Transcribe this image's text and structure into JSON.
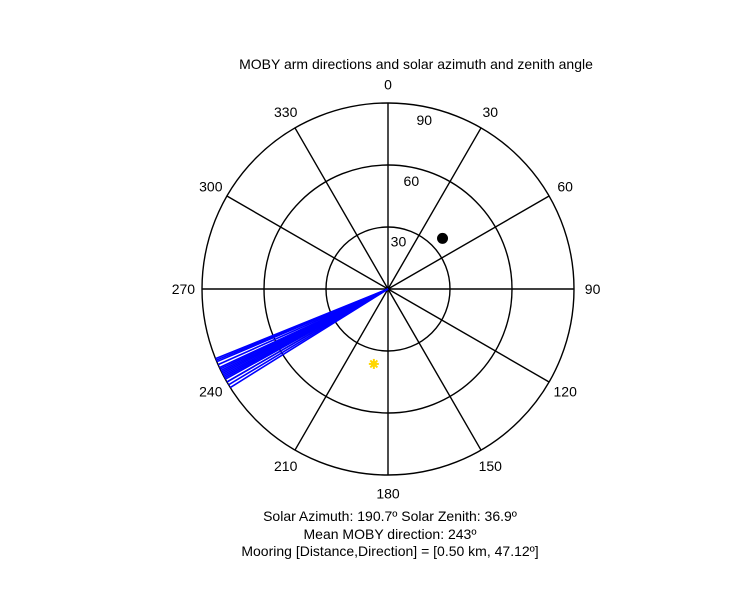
{
  "chart_data": {
    "type": "polar",
    "title": "MOBY arm directions and solar azimuth and zenith angle",
    "angle_ticks": [
      "0",
      "30",
      "60",
      "90",
      "120",
      "150",
      "180",
      "210",
      "240",
      "270",
      "300",
      "330"
    ],
    "radial_ticks": [
      "30",
      "60",
      "90"
    ],
    "rlim": [
      0,
      90
    ],
    "grid": true,
    "arm_directions": {
      "color": "#0000ff",
      "theta_deg": [
        238,
        239,
        240,
        241,
        241.5,
        242,
        242.5,
        243,
        243.5,
        244,
        244.5,
        245,
        246,
        247,
        247.5,
        248
      ]
    },
    "mooring_point": {
      "theta_deg": 47.12,
      "r": 36.0,
      "color": "#000000"
    },
    "sun_point": {
      "theta_deg": 190.7,
      "r": 36.9,
      "color": "#ffd700"
    },
    "captions": {
      "line1": "Solar Azimuth: 190.7º   Solar Zenith: 36.9º",
      "line2": "Mean MOBY direction: 243º",
      "line3": "Mooring [Distance,Direction] = [0.50 km, 47.12º]"
    }
  }
}
